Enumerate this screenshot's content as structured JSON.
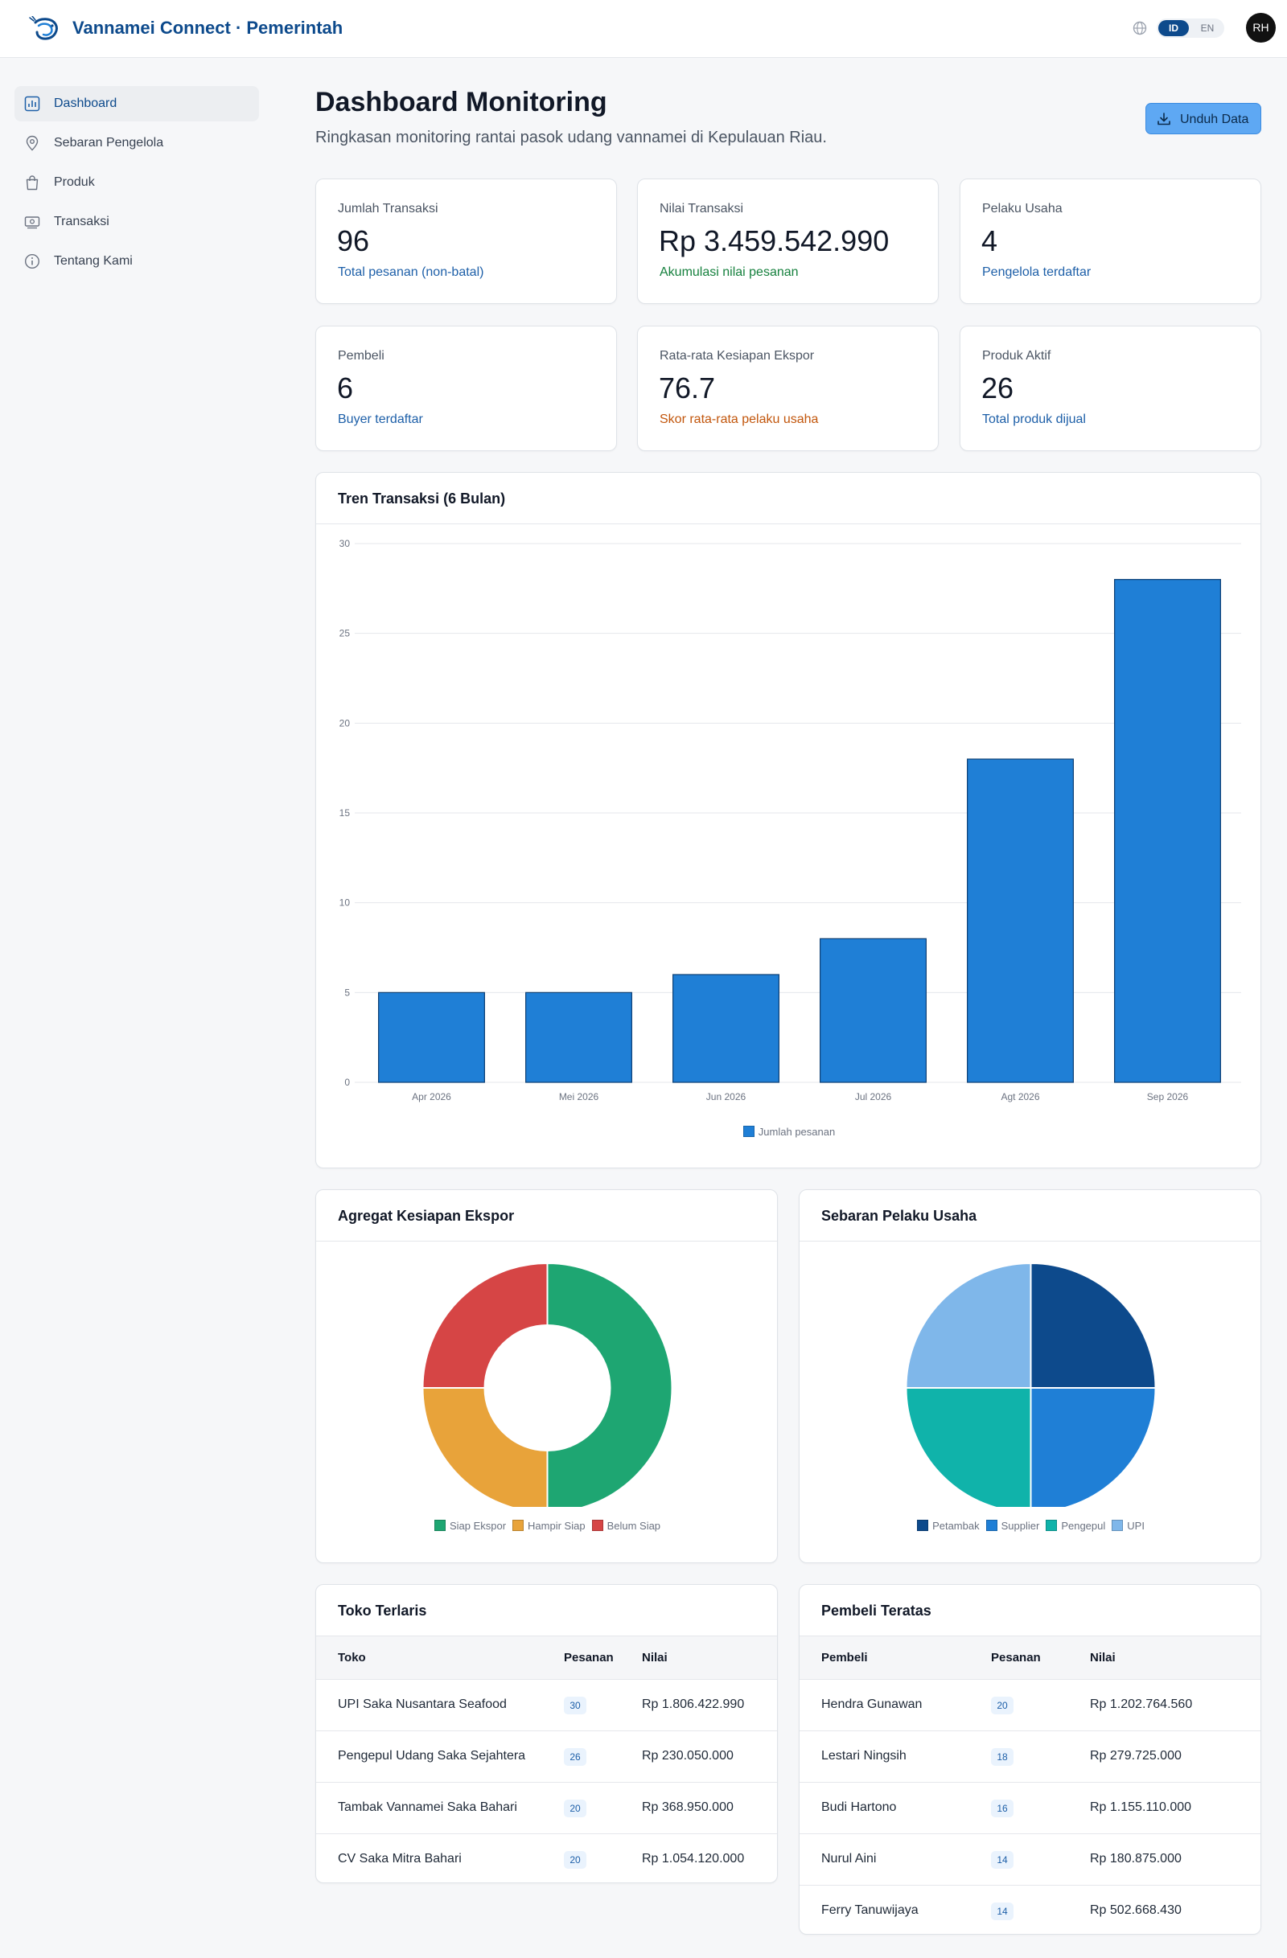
{
  "app": {
    "title": "Vannamei Connect · Pemerintah"
  },
  "header": {
    "lang_options": [
      "ID",
      "EN"
    ],
    "lang_selected": "ID",
    "avatar_initials": "RH"
  },
  "sidebar": {
    "items": [
      {
        "label": "Dashboard",
        "icon": "bar-chart-icon",
        "active": true
      },
      {
        "label": "Sebaran Pengelola",
        "icon": "map-pin-icon",
        "active": false
      },
      {
        "label": "Produk",
        "icon": "shopping-bag-icon",
        "active": false
      },
      {
        "label": "Transaksi",
        "icon": "cash-icon",
        "active": false
      },
      {
        "label": "Tentang Kami",
        "icon": "info-icon",
        "active": false
      }
    ]
  },
  "main": {
    "title": "Dashboard Monitoring",
    "subtitle": "Ringkasan monitoring rantai pasok udang vannamei di Kepulauan Riau.",
    "download_label": "Unduh Data",
    "stats": [
      {
        "label": "Jumlah Transaksi",
        "value": "96",
        "sub": "Total pesanan (non-batal)",
        "tone": "blue"
      },
      {
        "label": "Nilai Transaksi",
        "value": "Rp 3.459.542.990",
        "sub": "Akumulasi nilai pesanan",
        "tone": "green"
      },
      {
        "label": "Pelaku Usaha",
        "value": "4",
        "sub": "Pengelola terdaftar",
        "tone": "blue"
      },
      {
        "label": "Pembeli",
        "value": "6",
        "sub": "Buyer terdaftar",
        "tone": "blue"
      },
      {
        "label": "Rata-rata Kesiapan Ekspor",
        "value": "76.7",
        "sub": "Skor rata-rata pelaku usaha",
        "tone": "orange"
      },
      {
        "label": "Produk Aktif",
        "value": "26",
        "sub": "Total produk dijual",
        "tone": "blue"
      }
    ],
    "trend_title": "Tren Transaksi (6 Bulan)",
    "export_title": "Agregat Kesiapan Ekspor",
    "actors_title": "Sebaran Pelaku Usaha",
    "top_stores": {
      "title": "Toko Terlaris",
      "columns": [
        "Toko",
        "Pesanan",
        "Nilai"
      ],
      "rows": [
        {
          "name": "UPI Saka Nusantara Seafood",
          "orders": "30",
          "value": "Rp 1.806.422.990"
        },
        {
          "name": "Pengepul Udang Saka Sejahtera",
          "orders": "26",
          "value": "Rp 230.050.000"
        },
        {
          "name": "Tambak Vannamei Saka Bahari",
          "orders": "20",
          "value": "Rp 368.950.000"
        },
        {
          "name": "CV Saka Mitra Bahari",
          "orders": "20",
          "value": "Rp 1.054.120.000"
        }
      ]
    },
    "top_buyers": {
      "title": "Pembeli Teratas",
      "columns": [
        "Pembeli",
        "Pesanan",
        "Nilai"
      ],
      "rows": [
        {
          "name": "Hendra Gunawan",
          "orders": "20",
          "value": "Rp 1.202.764.560"
        },
        {
          "name": "Lestari Ningsih",
          "orders": "18",
          "value": "Rp 279.725.000"
        },
        {
          "name": "Budi Hartono",
          "orders": "16",
          "value": "Rp 1.155.110.000"
        },
        {
          "name": "Nurul Aini",
          "orders": "14",
          "value": "Rp 180.875.000"
        },
        {
          "name": "Ferry Tanuwijaya",
          "orders": "14",
          "value": "Rp 502.668.430"
        }
      ]
    }
  },
  "colors": {
    "brand": "#0d4a8c",
    "bar": "#1f7fd6",
    "siap": "#1ea672",
    "hampir": "#e8a33a",
    "belum": "#d64545",
    "petambak": "#0d4a8c",
    "supplier": "#1f7fd6",
    "pengepul": "#10b3aa",
    "upi": "#7fb7ea"
  },
  "chart_data": [
    {
      "type": "bar",
      "title": "Tren Transaksi (6 Bulan)",
      "categories": [
        "Apr 2026",
        "Mei 2026",
        "Jun 2026",
        "Jul 2026",
        "Agt 2026",
        "Sep 2026"
      ],
      "series": [
        {
          "name": "Jumlah pesanan",
          "values": [
            5,
            5,
            6,
            8,
            18,
            28
          ]
        }
      ],
      "ylim": [
        0,
        30
      ],
      "yticks": [
        0,
        5,
        10,
        15,
        20,
        25,
        30
      ],
      "grid": true,
      "legend": "bottom"
    },
    {
      "type": "pie",
      "variant": "donut",
      "title": "Agregat Kesiapan Ekspor",
      "labels": [
        "Siap Ekspor",
        "Hampir Siap",
        "Belum Siap"
      ],
      "values": [
        2,
        1,
        1
      ],
      "legend": "bottom"
    },
    {
      "type": "pie",
      "title": "Sebaran Pelaku Usaha",
      "labels": [
        "Petambak",
        "Supplier",
        "Pengepul",
        "UPI"
      ],
      "values": [
        1,
        1,
        1,
        1
      ],
      "legend": "bottom"
    }
  ]
}
